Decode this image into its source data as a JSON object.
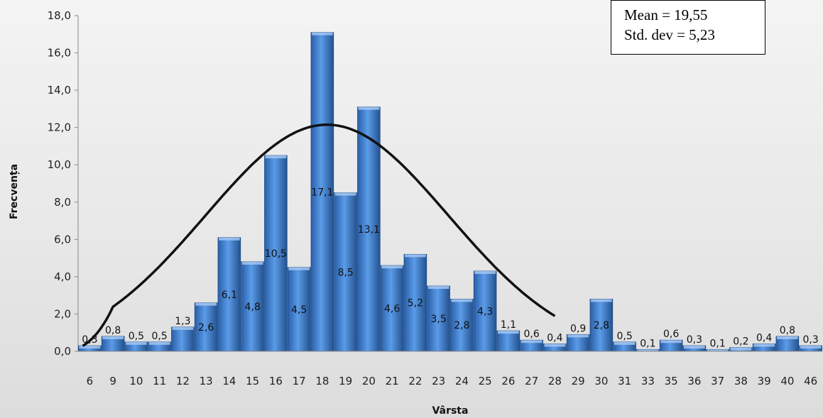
{
  "chart_data": {
    "type": "bar",
    "xlabel": "Vârsta",
    "ylabel": "Frecvența",
    "ylim": [
      0,
      18
    ],
    "yticks": [
      "0,0",
      "2,0",
      "4,0",
      "6,0",
      "8,0",
      "10,0",
      "12,0",
      "14,0",
      "16,0",
      "18,0"
    ],
    "categories": [
      "6",
      "9",
      "10",
      "11",
      "12",
      "13",
      "14",
      "15",
      "16",
      "17",
      "18",
      "19",
      "20",
      "21",
      "22",
      "23",
      "24",
      "25",
      "26",
      "27",
      "28",
      "29",
      "30",
      "31",
      "33",
      "35",
      "36",
      "37",
      "38",
      "39",
      "40",
      "46"
    ],
    "values": [
      0.3,
      0.8,
      0.5,
      0.5,
      1.3,
      2.6,
      6.1,
      4.8,
      10.5,
      4.5,
      17.1,
      8.5,
      13.1,
      4.6,
      5.2,
      3.5,
      2.8,
      4.3,
      1.1,
      0.6,
      0.4,
      0.9,
      2.8,
      0.5,
      0.1,
      0.6,
      0.3,
      0.1,
      0.2,
      0.4,
      0.8,
      0.3
    ],
    "labels": [
      "0,3",
      "0,8",
      "0,5",
      "0,5",
      "1,3",
      "2,6",
      "6,1",
      "4,8",
      "10,5",
      "4,5",
      "17,1",
      "8,5",
      "13,1",
      "4,6",
      "5,2",
      "3,5",
      "2,8",
      "4,3",
      "1,1",
      "0,6",
      "0,4",
      "0,9",
      "2,8",
      "0,5",
      "0,1",
      "0,6",
      "0,3",
      "0,1",
      "0,2",
      "0,4",
      "0,8",
      "0,3"
    ],
    "overlay": {
      "type": "normal-curve",
      "mean": 19.55,
      "std_dev": 5.23
    },
    "grid": false,
    "bar_color": "#3f7fd0",
    "curve_color": "#111111"
  },
  "stats": {
    "mean_text": "Mean = 19,55",
    "std_text": "Std. dev = 5,23"
  }
}
